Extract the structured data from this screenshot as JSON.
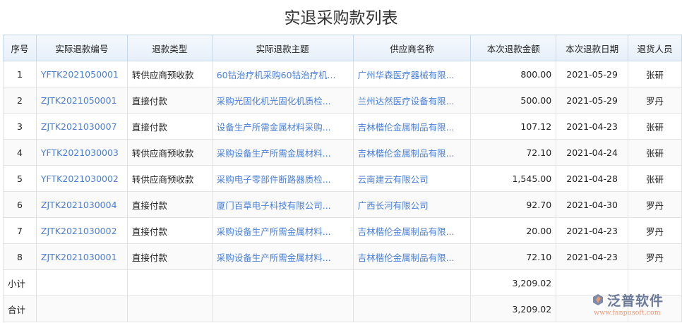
{
  "title": "实退采购款列表",
  "columns": [
    "序号",
    "实际退款编号",
    "退款类型",
    "实际退款主题",
    "供应商名称",
    "本次退款金额",
    "本次退款日期",
    "退货人员"
  ],
  "rows": [
    [
      "1",
      "YFTK2021050001",
      "转供应商预收款",
      "60钴治疗机采购60钴治疗机...",
      "广州华森医疗器械有限...",
      "800.00",
      "2021-05-29",
      "张研"
    ],
    [
      "2",
      "ZJTK2021050001",
      "直接付款",
      "采购光固化机光固化机质检...",
      "兰州达然医疗设备有限...",
      "500.00",
      "2021-05-29",
      "罗丹"
    ],
    [
      "3",
      "ZJTK2021030007",
      "直接付款",
      "设备生产所需金属材料采购...",
      "吉林楷伦金属制品有限...",
      "107.12",
      "2021-04-23",
      "张研"
    ],
    [
      "4",
      "YFTK2021030003",
      "转供应商预收款",
      "采购设备生产所需金属材料...",
      "吉林楷伦金属制品有限...",
      "72.10",
      "2021-04-24",
      "张研"
    ],
    [
      "5",
      "YFTK2021030002",
      "转供应商预收款",
      "采购电子零部件断路器质检...",
      "云南建云有限公司",
      "1,545.00",
      "2021-04-28",
      "张研"
    ],
    [
      "6",
      "ZJTK2021030004",
      "直接付款",
      "厦门百草电子科技有限公司...",
      "广西长河有限公司",
      "92.70",
      "2021-04-30",
      "罗丹"
    ],
    [
      "7",
      "ZJTK2021030002",
      "直接付款",
      "采购设备生产所需金属材料...",
      "吉林楷伦金属制品有限...",
      "20.00",
      "2021-04-23",
      "罗丹"
    ],
    [
      "8",
      "ZJTK2021030001",
      "直接付款",
      "采购设备生产所需金属材料...",
      "吉林楷伦金属制品有限...",
      "72.10",
      "2021-04-23",
      "罗丹"
    ]
  ],
  "subtotal": {
    "label": "小计",
    "amount": "3,209.02"
  },
  "total": {
    "label": "合计",
    "amount": "3,209.02"
  },
  "logo": {
    "cn": "泛普软件",
    "en": "www.fanpusoft.com"
  }
}
